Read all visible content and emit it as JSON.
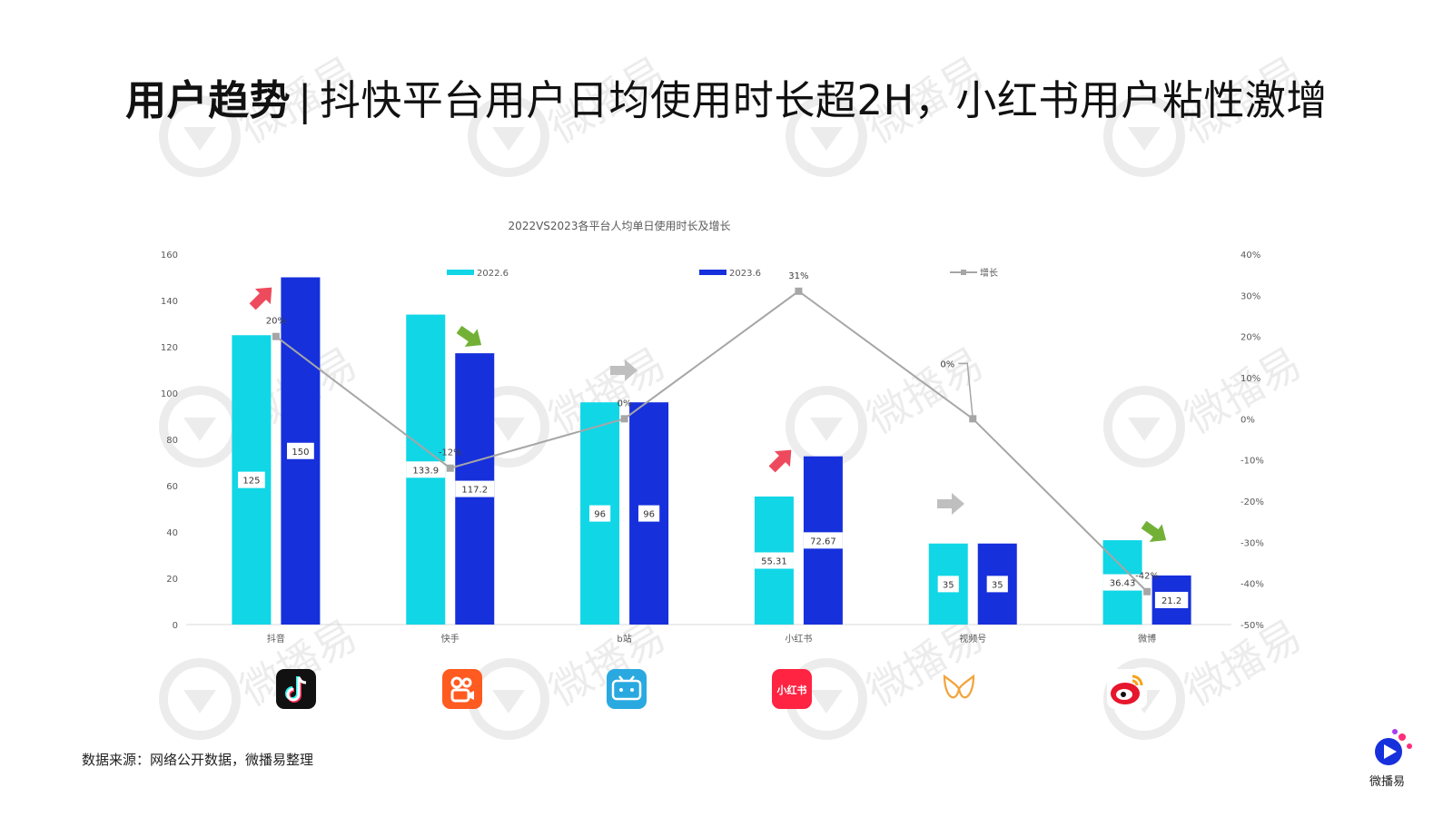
{
  "title": {
    "bold": "用户趋势",
    "separator": "|",
    "text": "抖快平台用户日均使用时长超2H，小红书用户粘性激增"
  },
  "source_note": "数据来源：网络公开数据，微播易整理",
  "brand_name": "微播易",
  "watermark_text": "微播易",
  "colors": {
    "series_2022": "#11d6e6",
    "series_2023": "#1630dc",
    "growth_line": "#a6a6a6",
    "arrow_up": "#ee4a5d",
    "arrow_down": "#72b136",
    "arrow_flat": "#bfbfbf"
  },
  "chart_data": {
    "type": "bar",
    "title": "2022VS2023各平台人均单日使用时长及增长",
    "categories": [
      "抖音",
      "快手",
      "b站",
      "小红书",
      "视频号",
      "微博"
    ],
    "series": [
      {
        "name": "2022.6",
        "values": [
          125,
          133.9,
          96,
          55.31,
          35,
          36.43
        ],
        "labels": [
          "125",
          "133.9",
          "96",
          "55.31",
          "35",
          "36.43"
        ]
      },
      {
        "name": "2023.6",
        "values": [
          150,
          117.2,
          96,
          72.67,
          35,
          21.2
        ],
        "labels": [
          "150",
          "117.2",
          "96",
          "72.67",
          "35",
          "21.2"
        ]
      }
    ],
    "line_series": {
      "name": "增长",
      "values": [
        20,
        -12,
        0,
        31,
        0,
        -42
      ],
      "labels": [
        "20%",
        "-12%",
        "0%",
        "31%",
        "0%",
        "-42%"
      ]
    },
    "trend_arrows": [
      "up",
      "down",
      "flat",
      "up",
      "flat",
      "down"
    ],
    "y_left": {
      "ticks": [
        "0",
        "20",
        "40",
        "60",
        "80",
        "100",
        "120",
        "140",
        "160"
      ],
      "min": 0,
      "max": 160
    },
    "y_right": {
      "ticks": [
        "-50%",
        "-40%",
        "-30%",
        "-20%",
        "-10%",
        "0%",
        "10%",
        "20%",
        "30%",
        "40%"
      ],
      "min": -50,
      "max": 40
    },
    "legend_position": "top",
    "grid": false
  },
  "platform_icons": [
    {
      "name": "douyin-logo-icon",
      "bg": "#111111"
    },
    {
      "name": "kuaishou-logo-icon",
      "bg": "#ff5a1f"
    },
    {
      "name": "bilibili-logo-icon",
      "bg": "#2aa9e0"
    },
    {
      "name": "xiaohongshu-logo-icon",
      "bg": "#ff2442",
      "text": "小红书"
    },
    {
      "name": "shipinhao-logo-icon",
      "bg": "#ffffff"
    },
    {
      "name": "weibo-logo-icon",
      "bg": "#ffffff"
    }
  ]
}
